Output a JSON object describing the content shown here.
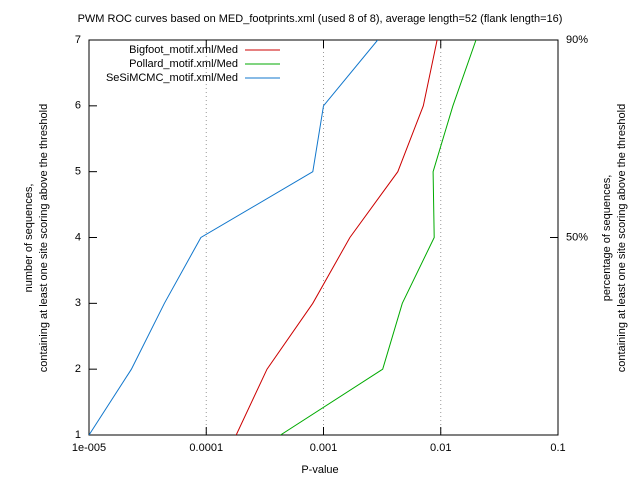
{
  "chart_data": {
    "type": "line",
    "title": "PWM ROC curves based on MED_footprints.xml (used 8 of 8), average length=52 (flank length=16)",
    "xlabel": "P-value",
    "ylabel": [
      "number of sequences,",
      "containing at least one site scoring above the threshold"
    ],
    "y2label": [
      "percentage of sequences,",
      "containing at least one site scoring above the threshold"
    ],
    "xlog": true,
    "xlim": [
      1e-05,
      0.1
    ],
    "xticks": [
      {
        "value": 1e-05,
        "label": "1e-005"
      },
      0.0001,
      0.001,
      0.01,
      0.1
    ],
    "ylim": [
      1,
      7
    ],
    "yticks": [
      1,
      2,
      3,
      4,
      5,
      6,
      7
    ],
    "y2lim": [
      10,
      90
    ],
    "y2ticks": [
      {
        "value": 50,
        "label": "50%"
      },
      {
        "value": 90,
        "label": "90%"
      }
    ],
    "grid": "x",
    "legend": "top-left",
    "series": [
      {
        "name": "Bigfoot_motif.xml/Med",
        "color": "#cc0000",
        "x": [
          0.00018,
          0.00033,
          0.00081,
          0.00168,
          0.0043,
          0.0071,
          0.0093
        ],
        "values": [
          1,
          2,
          3,
          4,
          5,
          6,
          7
        ]
      },
      {
        "name": "Pollard_motif.xml/Med",
        "color": "#00aa00",
        "x": [
          0.00043,
          0.0032,
          0.0047,
          0.0088,
          0.0086,
          0.0127,
          0.02
        ],
        "values": [
          1,
          2,
          3,
          4,
          5,
          6,
          7
        ]
      },
      {
        "name": "SeSiMCMC_motif.xml/Med",
        "color": "#1177cc",
        "x": [
          1e-05,
          2.3e-05,
          4.4e-05,
          9e-05,
          0.00081,
          0.001,
          0.0029
        ],
        "values": [
          1,
          2,
          3,
          4,
          5,
          6,
          7
        ]
      }
    ]
  }
}
